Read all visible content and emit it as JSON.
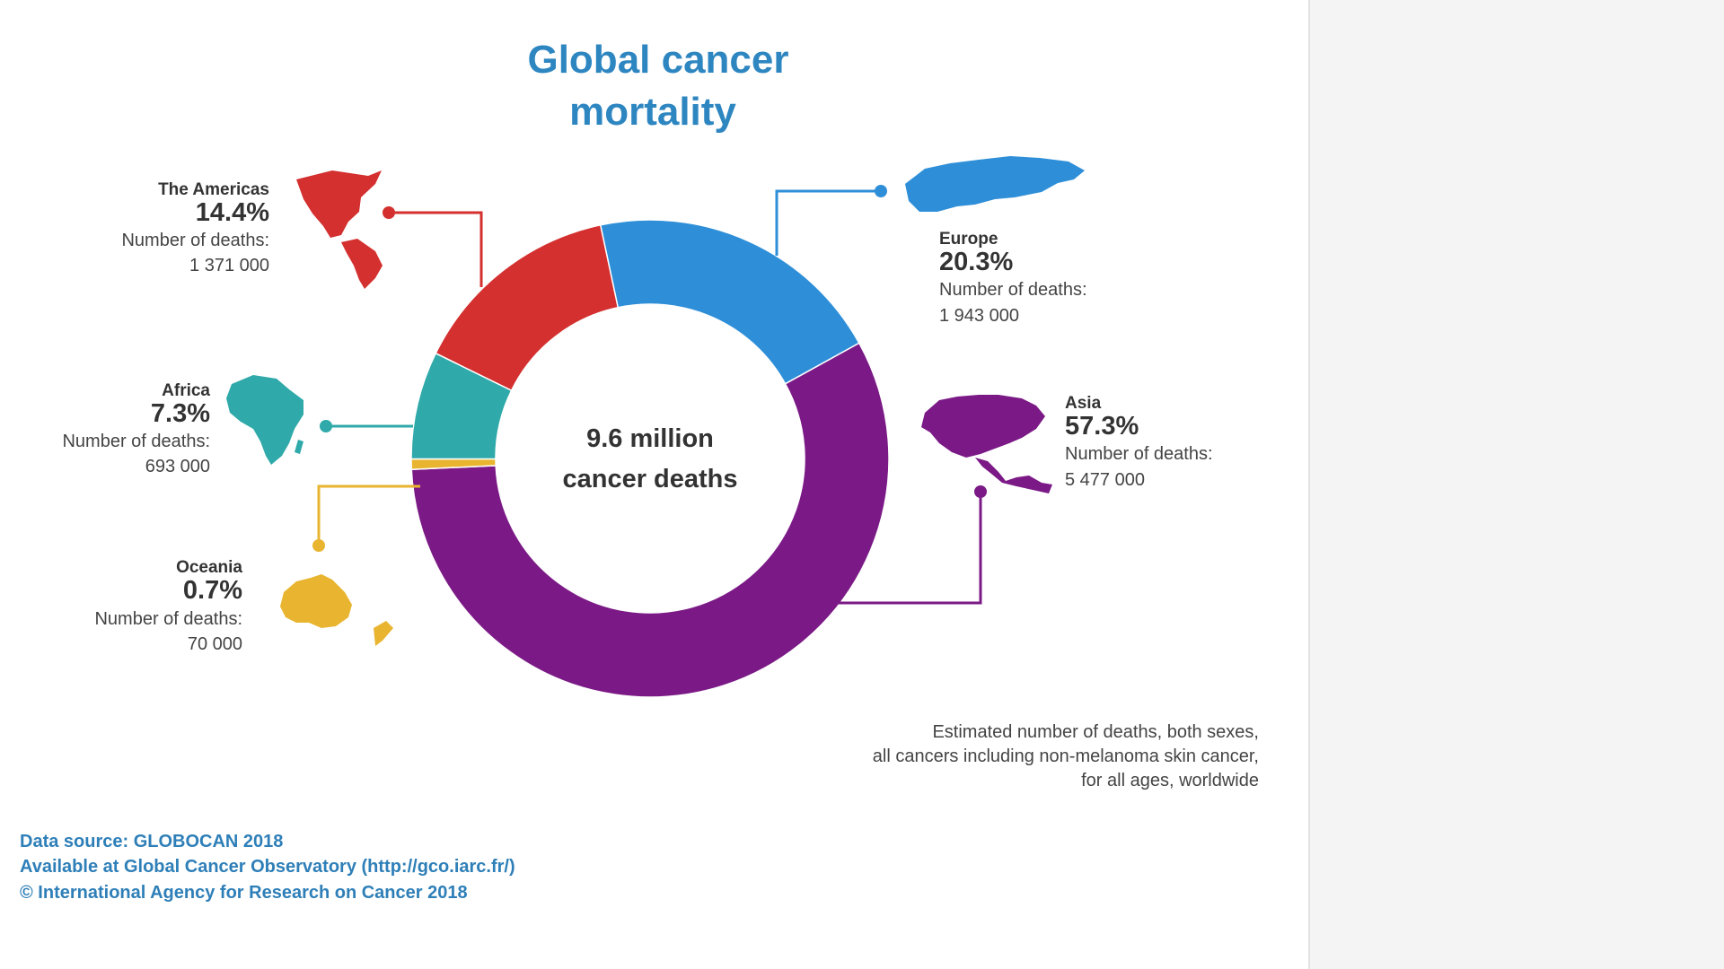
{
  "title": [
    "Global cancer",
    "mortality"
  ],
  "center_label": [
    "9.6 million",
    "cancer deaths"
  ],
  "chart_data": {
    "type": "pie",
    "donut": true,
    "total_label": "9.6 million cancer deaths",
    "slices": [
      {
        "name": "Asia",
        "percent": 57.3,
        "percent_label": "57.3%",
        "deaths_label": "Number of deaths:",
        "deaths": "5 477 000",
        "color": "#7b1a86"
      },
      {
        "name": "Europe",
        "percent": 20.3,
        "percent_label": "20.3%",
        "deaths_label": "Number of deaths:",
        "deaths": "1 943 000",
        "color": "#2e8fd8"
      },
      {
        "name": "The Americas",
        "percent": 14.4,
        "percent_label": "14.4%",
        "deaths_label": "Number of deaths:",
        "deaths": "1 371 000",
        "color": "#d3302f"
      },
      {
        "name": "Africa",
        "percent": 7.3,
        "percent_label": "7.3%",
        "deaths_label": "Number of deaths:",
        "deaths": "693 000",
        "color": "#2fa9a9"
      },
      {
        "name": "Oceania",
        "percent": 0.7,
        "percent_label": "0.7%",
        "deaths_label": "Number of deaths:",
        "deaths": "70 000",
        "color": "#e9b530"
      }
    ]
  },
  "note": [
    "Estimated number of deaths, both sexes,",
    "all cancers including non-melanoma skin cancer,",
    "for all ages, worldwide"
  ],
  "source": [
    "Data source: GLOBOCAN 2018",
    "Available at Global Cancer Observatory (http://gco.iarc.fr/)",
    "© International Agency for Research on Cancer 2018"
  ]
}
